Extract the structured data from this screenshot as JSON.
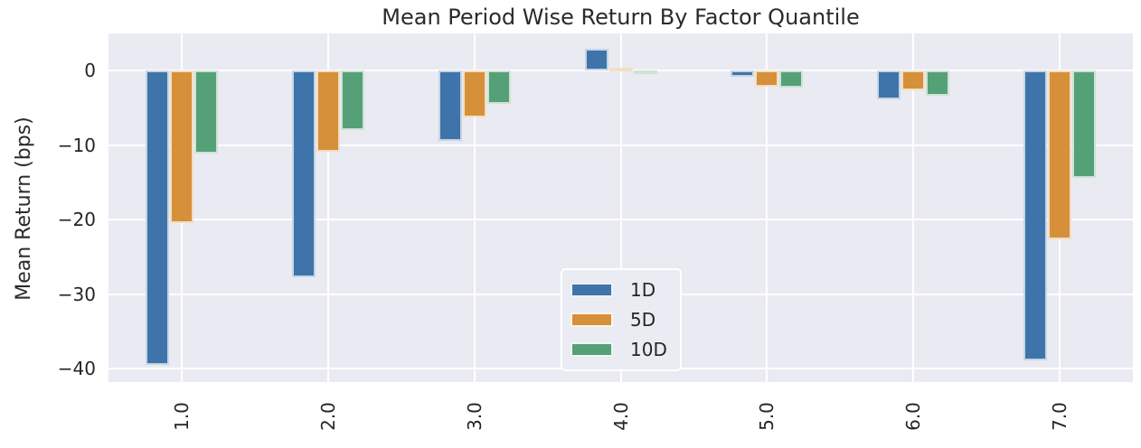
{
  "title": "Mean Period Wise Return By Factor Quantile",
  "ylabel": "Mean Return (bps)",
  "legend": {
    "entries": [
      {
        "label": "1D",
        "color": "#3E74A9"
      },
      {
        "label": "5D",
        "color": "#D6903A"
      },
      {
        "label": "10D",
        "color": "#55A077"
      }
    ]
  },
  "colors": {
    "figure_bg": "#FFFFFF",
    "axes_bg": "#EAEAF2",
    "grid": "#FFFFFF",
    "text": "#262626",
    "series_blue": "#3E74A9",
    "series_orange": "#D6903A",
    "series_green": "#55A077"
  },
  "chart_data": {
    "type": "bar",
    "title": "Mean Period Wise Return By Factor Quantile",
    "xlabel": "",
    "ylabel": "Mean Return (bps)",
    "categories": [
      "1.0",
      "2.0",
      "3.0",
      "4.0",
      "5.0",
      "6.0",
      "7.0"
    ],
    "series": [
      {
        "name": "1D",
        "color": "#3E74A9",
        "values": [
          -39.5,
          -27.7,
          -9.4,
          2.9,
          -0.8,
          -3.9,
          -38.9
        ]
      },
      {
        "name": "5D",
        "color": "#D6903A",
        "values": [
          -20.5,
          -10.9,
          -6.3,
          0.4,
          -2.1,
          -2.6,
          -22.6
        ]
      },
      {
        "name": "10D",
        "color": "#55A077",
        "values": [
          -11.1,
          -8.0,
          -4.4,
          -0.3,
          -2.3,
          -3.4,
          -14.4
        ]
      }
    ],
    "yticks": [
      0,
      -10,
      -20,
      -30,
      -40
    ],
    "ytick_labels": [
      "0",
      "−10",
      "−20",
      "−30",
      "−40"
    ],
    "ylim": [
      -41.8,
      5.0
    ],
    "grid": true,
    "legend_position": "inside lower-center"
  }
}
